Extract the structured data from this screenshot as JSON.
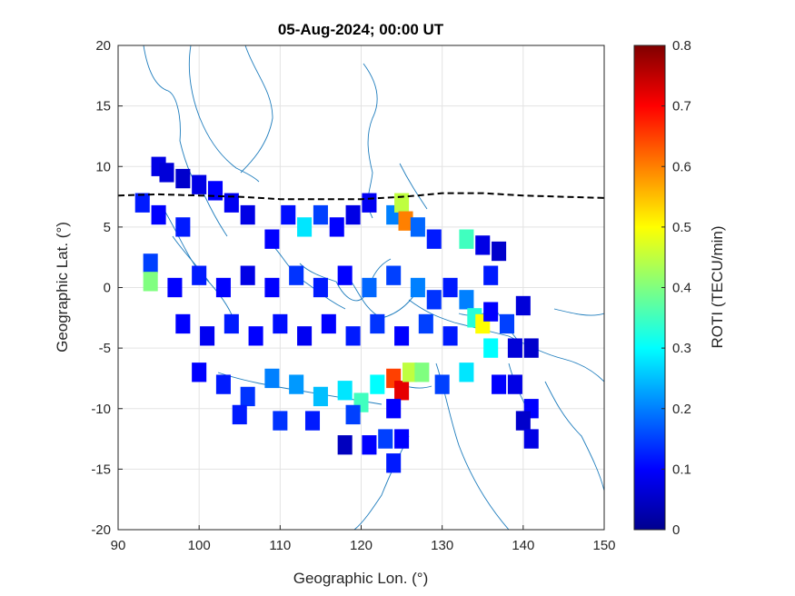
{
  "chart_data": {
    "type": "heatmap",
    "title": "05-Aug-2024; 00:00 UT",
    "xlabel": "Geographic Lon. (°)",
    "ylabel": "Geographic Lat. (°)",
    "xlim": [
      90,
      150
    ],
    "ylim": [
      -20,
      20
    ],
    "xticks": [
      "90",
      "100",
      "110",
      "120",
      "130",
      "140",
      "150"
    ],
    "yticks": [
      "20",
      "15",
      "10",
      "5",
      "0",
      "-5",
      "-10",
      "-15",
      "-20"
    ],
    "grid": true,
    "colorbar": {
      "label": "ROTI (TECU/min)",
      "range": [
        0,
        0.8
      ],
      "ticks": [
        "0.8",
        "0.7",
        "0.6",
        "0.5",
        "0.4",
        "0.3",
        "0.2",
        "0.1",
        "0"
      ],
      "colormap": "jet"
    },
    "equator_line": {
      "style": "dashed",
      "color": "#000000",
      "lon": [
        90,
        95,
        100,
        105,
        110,
        115,
        120,
        125,
        127,
        130,
        135,
        140,
        145,
        150
      ],
      "lat": [
        7.6,
        7.7,
        7.6,
        7.5,
        7.3,
        7.3,
        7.3,
        7.5,
        7.6,
        7.8,
        7.8,
        7.6,
        7.5,
        7.4
      ]
    },
    "roti_points": [
      {
        "lon": 95,
        "lat": 10,
        "roti": 0.08
      },
      {
        "lon": 96,
        "lat": 9.5,
        "roti": 0.07
      },
      {
        "lon": 98,
        "lat": 9,
        "roti": 0.06
      },
      {
        "lon": 100,
        "lat": 8.5,
        "roti": 0.08
      },
      {
        "lon": 102,
        "lat": 8,
        "roti": 0.1
      },
      {
        "lon": 93,
        "lat": 7,
        "roti": 0.12
      },
      {
        "lon": 95,
        "lat": 6,
        "roti": 0.1
      },
      {
        "lon": 98,
        "lat": 5,
        "roti": 0.12
      },
      {
        "lon": 104,
        "lat": 7,
        "roti": 0.09
      },
      {
        "lon": 106,
        "lat": 6,
        "roti": 0.08
      },
      {
        "lon": 109,
        "lat": 4,
        "roti": 0.1
      },
      {
        "lon": 111,
        "lat": 6,
        "roti": 0.11
      },
      {
        "lon": 113,
        "lat": 5,
        "roti": 0.28
      },
      {
        "lon": 115,
        "lat": 6,
        "roti": 0.15
      },
      {
        "lon": 117,
        "lat": 5,
        "roti": 0.1
      },
      {
        "lon": 119,
        "lat": 6,
        "roti": 0.08
      },
      {
        "lon": 121,
        "lat": 7,
        "roti": 0.09
      },
      {
        "lon": 124,
        "lat": 6,
        "roti": 0.2
      },
      {
        "lon": 125,
        "lat": 7,
        "roti": 0.45
      },
      {
        "lon": 125.5,
        "lat": 5.5,
        "roti": 0.6
      },
      {
        "lon": 127,
        "lat": 5,
        "roti": 0.18
      },
      {
        "lon": 129,
        "lat": 4,
        "roti": 0.12
      },
      {
        "lon": 133,
        "lat": 4,
        "roti": 0.35
      },
      {
        "lon": 135,
        "lat": 3.5,
        "roti": 0.08
      },
      {
        "lon": 137,
        "lat": 3,
        "roti": 0.06
      },
      {
        "lon": 136,
        "lat": 1,
        "roti": 0.12
      },
      {
        "lon": 94,
        "lat": 2,
        "roti": 0.15
      },
      {
        "lon": 94,
        "lat": 0.5,
        "roti": 0.4
      },
      {
        "lon": 97,
        "lat": 0,
        "roti": 0.1
      },
      {
        "lon": 100,
        "lat": 1,
        "roti": 0.12
      },
      {
        "lon": 103,
        "lat": 0,
        "roti": 0.1
      },
      {
        "lon": 106,
        "lat": 1,
        "roti": 0.08
      },
      {
        "lon": 109,
        "lat": 0,
        "roti": 0.1
      },
      {
        "lon": 112,
        "lat": 1,
        "roti": 0.14
      },
      {
        "lon": 115,
        "lat": 0,
        "roti": 0.12
      },
      {
        "lon": 118,
        "lat": 1,
        "roti": 0.1
      },
      {
        "lon": 121,
        "lat": 0,
        "roti": 0.18
      },
      {
        "lon": 124,
        "lat": 1,
        "roti": 0.15
      },
      {
        "lon": 127,
        "lat": 0,
        "roti": 0.2
      },
      {
        "lon": 129,
        "lat": -1,
        "roti": 0.14
      },
      {
        "lon": 131,
        "lat": 0,
        "roti": 0.12
      },
      {
        "lon": 133,
        "lat": -1,
        "roti": 0.2
      },
      {
        "lon": 134,
        "lat": -2.5,
        "roti": 0.33
      },
      {
        "lon": 135,
        "lat": -3,
        "roti": 0.5
      },
      {
        "lon": 136,
        "lat": -2,
        "roti": 0.1
      },
      {
        "lon": 138,
        "lat": -3,
        "roti": 0.15
      },
      {
        "lon": 140,
        "lat": -1.5,
        "roti": 0.07
      },
      {
        "lon": 98,
        "lat": -3,
        "roti": 0.1
      },
      {
        "lon": 101,
        "lat": -4,
        "roti": 0.09
      },
      {
        "lon": 104,
        "lat": -3,
        "roti": 0.12
      },
      {
        "lon": 107,
        "lat": -4,
        "roti": 0.1
      },
      {
        "lon": 110,
        "lat": -3,
        "roti": 0.11
      },
      {
        "lon": 113,
        "lat": -4,
        "roti": 0.09
      },
      {
        "lon": 116,
        "lat": -3,
        "roti": 0.1
      },
      {
        "lon": 119,
        "lat": -4,
        "roti": 0.12
      },
      {
        "lon": 122,
        "lat": -3,
        "roti": 0.14
      },
      {
        "lon": 125,
        "lat": -4,
        "roti": 0.1
      },
      {
        "lon": 128,
        "lat": -3,
        "roti": 0.15
      },
      {
        "lon": 131,
        "lat": -4,
        "roti": 0.12
      },
      {
        "lon": 136,
        "lat": -5,
        "roti": 0.3
      },
      {
        "lon": 139,
        "lat": -5,
        "roti": 0.07
      },
      {
        "lon": 141,
        "lat": -5,
        "roti": 0.06
      },
      {
        "lon": 100,
        "lat": -7,
        "roti": 0.1
      },
      {
        "lon": 103,
        "lat": -8,
        "roti": 0.12
      },
      {
        "lon": 106,
        "lat": -9,
        "roti": 0.14
      },
      {
        "lon": 109,
        "lat": -7.5,
        "roti": 0.2
      },
      {
        "lon": 112,
        "lat": -8,
        "roti": 0.22
      },
      {
        "lon": 115,
        "lat": -9,
        "roti": 0.25
      },
      {
        "lon": 118,
        "lat": -8.5,
        "roti": 0.28
      },
      {
        "lon": 120,
        "lat": -9.5,
        "roti": 0.35
      },
      {
        "lon": 122,
        "lat": -8,
        "roti": 0.3
      },
      {
        "lon": 124,
        "lat": -7.5,
        "roti": 0.65
      },
      {
        "lon": 125,
        "lat": -8.5,
        "roti": 0.72
      },
      {
        "lon": 126,
        "lat": -7,
        "roti": 0.45
      },
      {
        "lon": 127.5,
        "lat": -7,
        "roti": 0.4
      },
      {
        "lon": 130,
        "lat": -8,
        "roti": 0.15
      },
      {
        "lon": 133,
        "lat": -7,
        "roti": 0.28
      },
      {
        "lon": 137,
        "lat": -8,
        "roti": 0.1
      },
      {
        "lon": 139,
        "lat": -8,
        "roti": 0.08
      },
      {
        "lon": 141,
        "lat": -10,
        "roti": 0.1
      },
      {
        "lon": 105,
        "lat": -10.5,
        "roti": 0.12
      },
      {
        "lon": 110,
        "lat": -11,
        "roti": 0.14
      },
      {
        "lon": 114,
        "lat": -11,
        "roti": 0.12
      },
      {
        "lon": 119,
        "lat": -10.5,
        "roti": 0.15
      },
      {
        "lon": 124,
        "lat": -10,
        "roti": 0.1
      },
      {
        "lon": 118,
        "lat": -13,
        "roti": 0.05
      },
      {
        "lon": 121,
        "lat": -13,
        "roti": 0.1
      },
      {
        "lon": 123,
        "lat": -12.5,
        "roti": 0.15
      },
      {
        "lon": 125,
        "lat": -12.5,
        "roti": 0.1
      },
      {
        "lon": 124,
        "lat": -14.5,
        "roti": 0.12
      },
      {
        "lon": 140,
        "lat": -11,
        "roti": 0.06
      },
      {
        "lon": 141,
        "lat": -12.5,
        "roti": 0.08
      }
    ]
  }
}
